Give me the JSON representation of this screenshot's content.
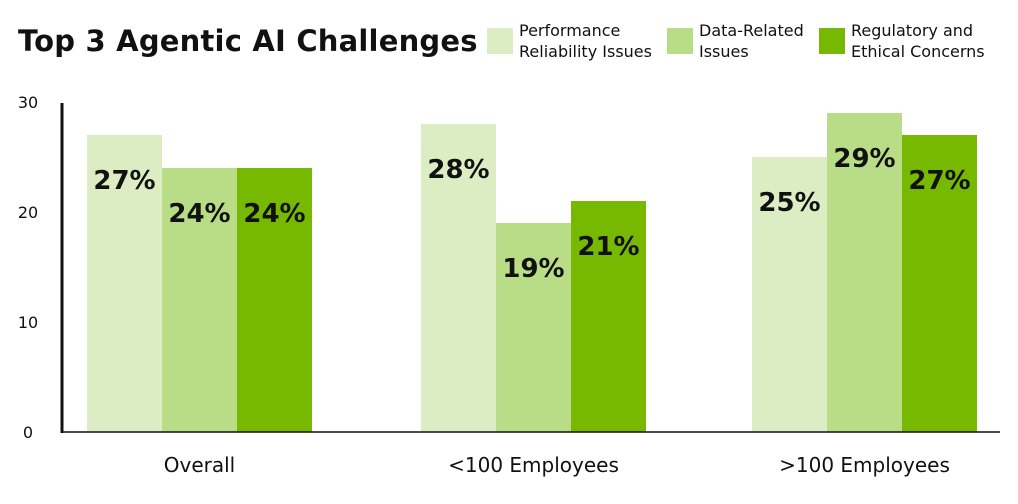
{
  "chart_data": {
    "type": "bar",
    "title": "Top 3 Agentic AI Challenges",
    "categories": [
      "Overall",
      "<100 Employees",
      ">100 Employees"
    ],
    "series": [
      {
        "name": "Performance Reliability Issues",
        "color": "#dcedc4",
        "values": [
          27,
          28,
          25
        ],
        "labels": [
          "27%",
          "28%",
          "25%"
        ]
      },
      {
        "name": "Data-Related Issues",
        "color": "#b9dd86",
        "values": [
          24,
          19,
          29
        ],
        "labels": [
          "24%",
          "19%",
          "29%"
        ]
      },
      {
        "name": "Regulatory and Ethical Concerns",
        "color": "#76b900",
        "values": [
          24,
          21,
          27
        ],
        "labels": [
          "24%",
          "21%",
          "27%"
        ]
      }
    ],
    "yticks": [
      "0",
      "10",
      "20",
      "30"
    ],
    "ylim": [
      0,
      30
    ],
    "xlabel": "",
    "ylabel": "",
    "legend": "top-right",
    "grid": false
  }
}
